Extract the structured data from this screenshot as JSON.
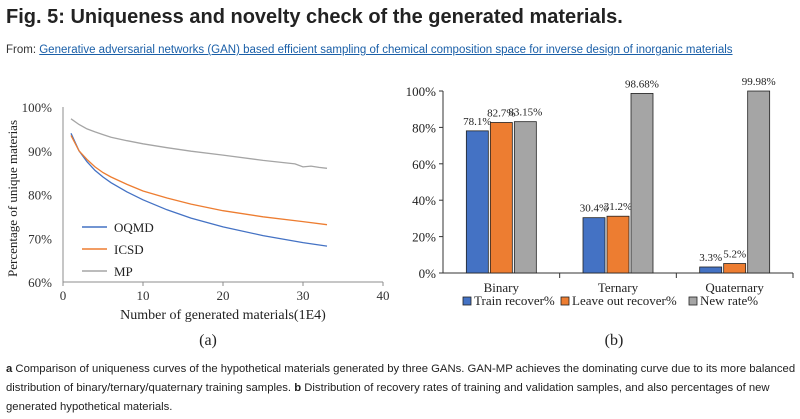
{
  "header": {
    "title": "Fig. 5: Uniqueness and novelty check of the generated materials.",
    "from_label": "From:",
    "source_link": "Generative adversarial networks (GAN) based efficient sampling of chemical composition space for inverse design of inorganic materials"
  },
  "caption": {
    "a_label": "a",
    "a_text": " Comparison of uniqueness curves of the hypothetical materials generated by three GANs. GAN-MP achieves the dominating curve due to its more balanced distribution of binary/ternary/quaternary training samples. ",
    "b_label": "b",
    "b_text": " Distribution of recovery rates of training and validation samples, and also percentages of new generated hypothetical materials."
  },
  "chart_data": [
    {
      "type": "line",
      "panel_label": "(a)",
      "xlabel": "Number of generated materials(1E4)",
      "ylabel": "Percentage of unique materias",
      "xlim": [
        0,
        40
      ],
      "ylim": [
        60,
        100
      ],
      "xticks": [
        "0",
        "10",
        "20",
        "30",
        "40"
      ],
      "yticks": [
        "60%",
        "70%",
        "80%",
        "90%",
        "100%"
      ],
      "grid": false,
      "legend_position": "bottom-left",
      "series": [
        {
          "name": "OQMD",
          "color": "#4472c4",
          "x": [
            1,
            2,
            3,
            4,
            5,
            6,
            8,
            10,
            13,
            16,
            20,
            25,
            30,
            33
          ],
          "y": [
            94,
            90,
            87.5,
            85.5,
            84,
            82.7,
            80.6,
            78.8,
            76.5,
            74.6,
            72.6,
            70.6,
            69,
            68.2
          ]
        },
        {
          "name": "ICSD",
          "color": "#ed7d31",
          "x": [
            1,
            2,
            3,
            4,
            5,
            6,
            8,
            10,
            13,
            16,
            20,
            25,
            30,
            33
          ],
          "y": [
            93.5,
            90,
            88,
            86.3,
            85,
            84,
            82.3,
            80.8,
            79.2,
            77.8,
            76.3,
            74.9,
            73.8,
            73.1
          ]
        },
        {
          "name": "MP",
          "color": "#a5a5a5",
          "x": [
            1,
            2,
            3,
            4,
            5,
            6,
            8,
            10,
            13,
            16,
            20,
            25,
            29,
            30,
            31,
            32,
            33
          ],
          "y": [
            97.3,
            96,
            95,
            94.3,
            93.7,
            93.1,
            92.3,
            91.6,
            90.7,
            89.9,
            89,
            87.8,
            87,
            86.3,
            86.5,
            86.2,
            86
          ]
        }
      ]
    },
    {
      "type": "bar",
      "panel_label": "(b)",
      "categories": [
        "Binary",
        "Ternary",
        "Quaternary"
      ],
      "ylim": [
        0,
        100
      ],
      "yticks": [
        "0%",
        "20%",
        "40%",
        "60%",
        "80%",
        "100%"
      ],
      "legend_position": "bottom",
      "series": [
        {
          "name": "Train recover%",
          "color": "#4472c4",
          "values": [
            78.1,
            30.4,
            3.3
          ],
          "labels": [
            "78.1%",
            "30.4%",
            "3.3%"
          ]
        },
        {
          "name": "Leave out recover%",
          "color": "#ed7d31",
          "values": [
            82.7,
            31.2,
            5.2
          ],
          "labels": [
            "82.7%",
            "31.2%",
            "5.2%"
          ]
        },
        {
          "name": "New rate%",
          "color": "#a5a5a5",
          "values": [
            83.15,
            98.68,
            99.98
          ],
          "labels": [
            "83.15%",
            "98.68%",
            "99.98%"
          ]
        }
      ]
    }
  ]
}
